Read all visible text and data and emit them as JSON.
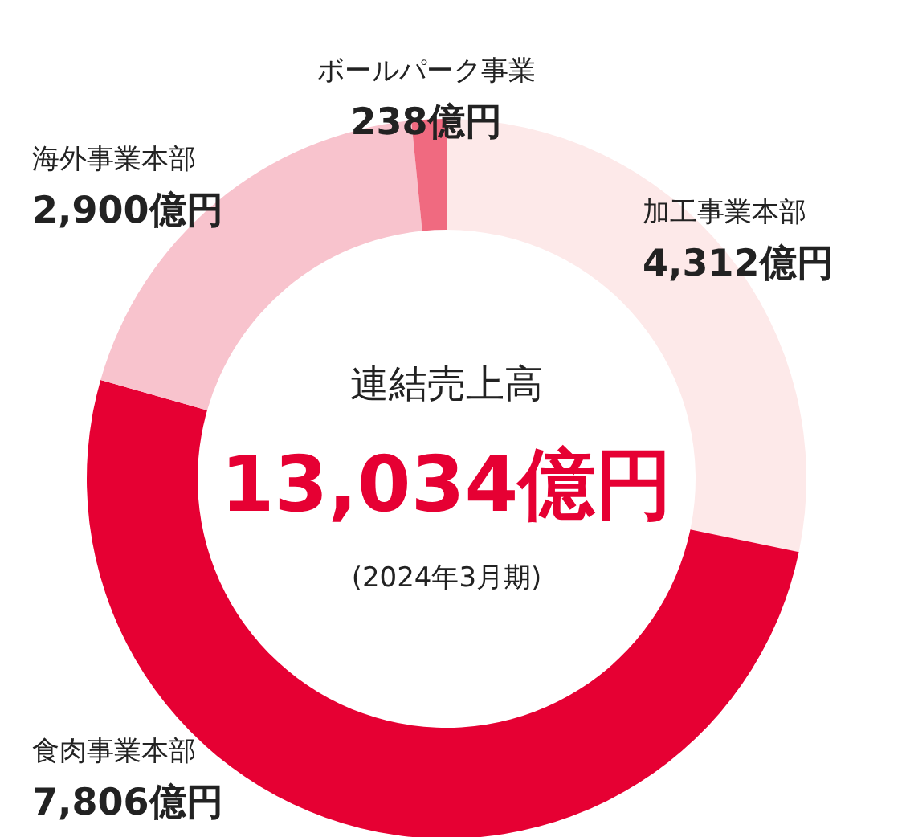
{
  "chart_data": {
    "type": "donut",
    "categories": [
      "加工事業本部",
      "食肉事業本部",
      "海外事業本部",
      "ボールパーク事業"
    ],
    "values": [
      4312,
      7806,
      2900,
      238
    ],
    "value_labels": [
      "4,312億円",
      "7,806億円",
      "2,900億円",
      "238億円"
    ],
    "colors": [
      "#fde9e9",
      "#e60033",
      "#f8c3cd",
      "#f06a80"
    ],
    "annotations": [
      "連結売上高",
      "13,034億円",
      "(2024年3月期)"
    ]
  }
}
